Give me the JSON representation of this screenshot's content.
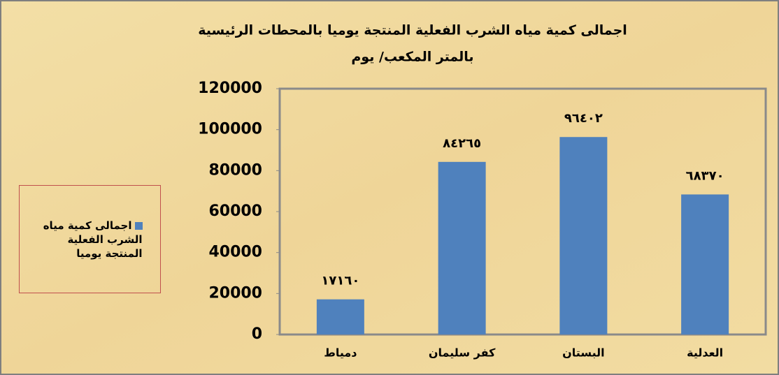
{
  "chart_data": {
    "type": "bar",
    "title": [
      "اجمالى كمية مياه الشرب الفعلية المنتجة يوميا بالمحطات الرئيسية",
      "بالمتر المكعب/ يوم"
    ],
    "categories": [
      "دمياط",
      "كفر سليمان",
      "البستان",
      "العدلية"
    ],
    "series": [
      {
        "name": "اجمالى كمية مياه الشرب الفعلية المنتجة يوميا",
        "color": "#4f81bd",
        "values": [
          17160,
          84265,
          96402,
          68370
        ],
        "value_labels": [
          "١٧١٦٠",
          "٨٤٢٦٥",
          "٩٦٤٠٢",
          "٦٨٣٧٠"
        ]
      }
    ],
    "ylim": [
      0,
      120000
    ],
    "yticks": [
      0,
      20000,
      40000,
      60000,
      80000,
      100000,
      120000
    ],
    "grid": false,
    "legend": "left"
  }
}
